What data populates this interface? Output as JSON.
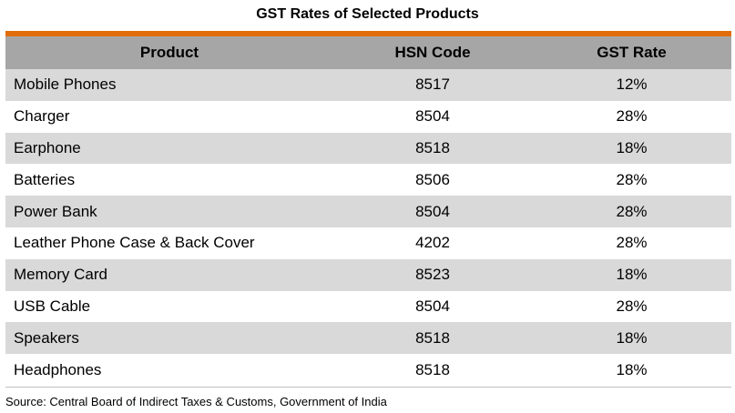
{
  "title": "GST Rates of Selected Products",
  "colors": {
    "accent": "#e36c0a",
    "header_bg": "#a6a6a6",
    "stripe_bg": "#d9d9d9"
  },
  "table": {
    "headers": [
      "Product",
      "HSN Code",
      "GST Rate"
    ],
    "rows": [
      [
        "Mobile Phones",
        "8517",
        "12%"
      ],
      [
        "Charger",
        "8504",
        "28%"
      ],
      [
        "Earphone",
        "8518",
        "18%"
      ],
      [
        "Batteries",
        "8506",
        "28%"
      ],
      [
        "Power Bank",
        "8504",
        "28%"
      ],
      [
        "Leather Phone Case & Back Cover",
        "4202",
        "28%"
      ],
      [
        "Memory Card",
        "8523",
        "18%"
      ],
      [
        "USB Cable",
        "8504",
        "28%"
      ],
      [
        "Speakers",
        "8518",
        "18%"
      ],
      [
        "Headphones",
        "8518",
        "18%"
      ]
    ]
  },
  "source": "Source: Central Board of Indirect Taxes & Customs, Government of India"
}
